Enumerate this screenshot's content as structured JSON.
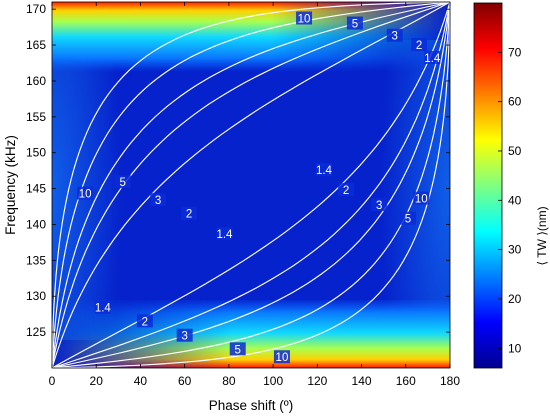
{
  "chart_data": {
    "type": "heatmap",
    "title": "",
    "xlabel": "Phase shift (º)",
    "ylabel": "Frequency (kHz)",
    "colorbar_label": "⟨ TW ⟩(nm)",
    "xlim": [
      0,
      180
    ],
    "ylim": [
      120,
      171
    ],
    "x_ticks": [
      0,
      20,
      40,
      60,
      80,
      100,
      120,
      140,
      160,
      180
    ],
    "y_ticks": [
      125,
      130,
      135,
      140,
      145,
      150,
      155,
      160,
      165,
      170
    ],
    "colorbar_range": [
      6,
      80
    ],
    "colorbar_ticks": [
      10,
      20,
      30,
      40,
      50,
      60,
      70
    ],
    "colormap": "jet",
    "contour_levels": [
      1.4,
      2,
      3,
      5,
      10
    ],
    "contour_label_positions": [
      {
        "label": "10",
        "x": 114,
        "y": 168.7
      },
      {
        "label": "5",
        "x": 137,
        "y": 168.0
      },
      {
        "label": "3",
        "x": 155,
        "y": 166.3
      },
      {
        "label": "2",
        "x": 166,
        "y": 165.0
      },
      {
        "label": "1.4",
        "x": 172,
        "y": 163.2
      },
      {
        "label": "10",
        "x": 15,
        "y": 144.3
      },
      {
        "label": "5",
        "x": 32,
        "y": 145.9
      },
      {
        "label": "3",
        "x": 48,
        "y": 143.4
      },
      {
        "label": "2",
        "x": 62,
        "y": 141.5
      },
      {
        "label": "1.4",
        "x": 78,
        "y": 138.7
      },
      {
        "label": "1.4",
        "x": 123,
        "y": 147.6
      },
      {
        "label": "2",
        "x": 133,
        "y": 144.8
      },
      {
        "label": "3",
        "x": 148,
        "y": 142.7
      },
      {
        "label": "5",
        "x": 161,
        "y": 140.8
      },
      {
        "label": "10",
        "x": 167,
        "y": 143.6
      },
      {
        "label": "1.4",
        "x": 23,
        "y": 128.4
      },
      {
        "label": "2",
        "x": 42,
        "y": 126.5
      },
      {
        "label": "3",
        "x": 60,
        "y": 124.5
      },
      {
        "label": "5",
        "x": 84,
        "y": 122.6
      },
      {
        "label": "10",
        "x": 104,
        "y": 121.5
      }
    ],
    "heat_regions": [
      {
        "description": "high (≈75–80 nm) band along top edge, x 0–95",
        "level": "max"
      },
      {
        "description": "high (≈75–80 nm) band along bottom edge, x 80–180",
        "level": "max"
      },
      {
        "description": "low (≈7–10 nm) interior",
        "level": "min"
      }
    ]
  }
}
